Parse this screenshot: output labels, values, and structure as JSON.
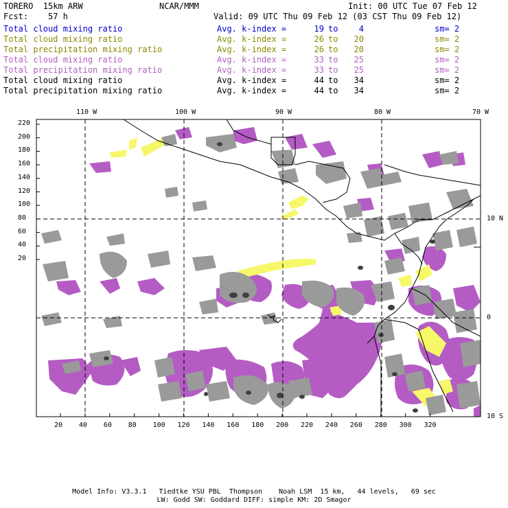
{
  "header": {
    "model": "TORERO  15km ARW",
    "org": "NCAR/MMM",
    "init": "Init: 00 UTC Tue 07 Feb 12",
    "fcst": "Fcst:    57 h",
    "valid": "Valid: 09 UTC Thu 09 Feb 12 (03 CST Thu 09 Feb 12)"
  },
  "legend": [
    {
      "field": "Total cloud mixing ratio",
      "avg_label": "Avg. k-index =",
      "from": "19",
      "to_word": "to",
      "to": "4",
      "sm": "sm= 2",
      "color": "#0000cc"
    },
    {
      "field": "Total cloud mixing ratio",
      "avg_label": "Avg. k-index =",
      "from": "26",
      "to_word": "to",
      "to": "20",
      "sm": "sm= 2",
      "color": "#8a8a00"
    },
    {
      "field": "Total precipitation mixing ratio",
      "avg_label": "Avg. k-index =",
      "from": "26",
      "to_word": "to",
      "to": "20",
      "sm": "sm= 2",
      "color": "#8a8a00"
    },
    {
      "field": "Total cloud mixing ratio",
      "avg_label": "Avg. k-index =",
      "from": "33",
      "to_word": "to",
      "to": "25",
      "sm": "sm= 2",
      "color": "#b060c0"
    },
    {
      "field": "Total precipitation mixing ratio",
      "avg_label": "Avg. k-index =",
      "from": "33",
      "to_word": "to",
      "to": "25",
      "sm": "sm= 2",
      "color": "#b060c0"
    },
    {
      "field": "Total cloud mixing ratio",
      "avg_label": "Avg. k-index =",
      "from": "44",
      "to_word": "to",
      "to": "34",
      "sm": "sm= 2",
      "color": "#000000"
    },
    {
      "field": "Total precipitation mixing ratio",
      "avg_label": "Avg. k-index =",
      "from": "44",
      "to_word": "to",
      "to": "34",
      "sm": "sm= 2",
      "color": "#000000"
    }
  ],
  "map": {
    "lon_labels": [
      "110 W",
      "100 W",
      "90 W",
      "80 W",
      "70 W"
    ],
    "lat_labels": [
      "10 N",
      "0",
      "10 S"
    ],
    "y_ticks": [
      "220",
      "200",
      "180",
      "160",
      "140",
      "120",
      "100",
      "80",
      "60",
      "40",
      "20"
    ],
    "x_ticks": [
      "20",
      "40",
      "60",
      "80",
      "100",
      "120",
      "140",
      "160",
      "180",
      "200",
      "220",
      "240",
      "260",
      "280",
      "300",
      "320"
    ],
    "colors": {
      "cloud_gray": "#9a9a9a",
      "cloud_dark": "#404040",
      "precip_purple": "#b45cc4",
      "precip_yellow": "#f7f76a",
      "coast": "#000000"
    }
  },
  "footer": {
    "line1": "Model Info: V3.3.1   Tiedtke YSU PBL  Thompson    Noah LSM  15 km,   44 levels,   69 sec",
    "line2": "LW: Godd SW: Goddard DIFF: simple KM: 2D Smagor"
  }
}
